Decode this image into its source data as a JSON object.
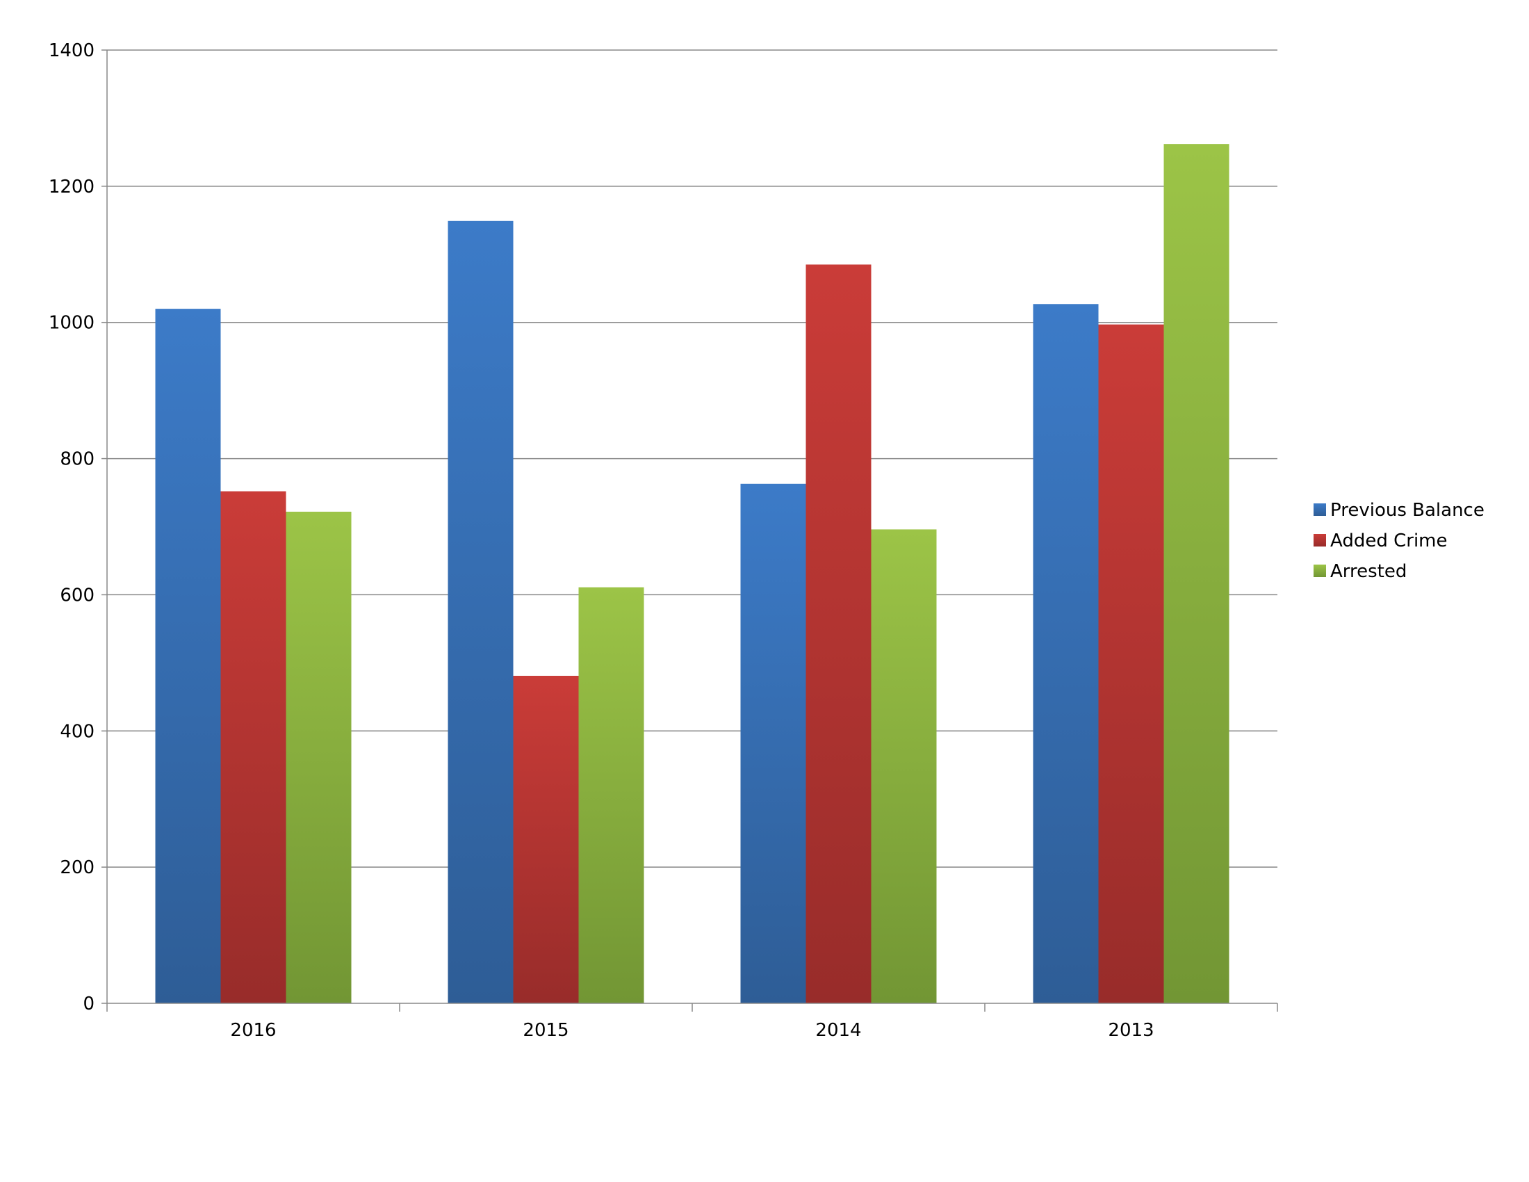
{
  "chart_data": {
    "type": "bar",
    "title": "",
    "xlabel": "",
    "ylabel": "",
    "categories": [
      "2016",
      "2015",
      "2014",
      "2013"
    ],
    "series": [
      {
        "name": "Previous Balance",
        "color": "#3a78c4",
        "values": [
          1020,
          1149,
          763,
          1027
        ]
      },
      {
        "name": "Added Crime",
        "color": "#c63a36",
        "values": [
          752,
          481,
          1085,
          997
        ]
      },
      {
        "name": "Arrested",
        "color": "#9ac144",
        "values": [
          722,
          611,
          696,
          1262
        ]
      }
    ],
    "ylim": [
      0,
      1400
    ],
    "yticks": [
      0,
      200,
      400,
      600,
      800,
      1000,
      1200,
      1400
    ],
    "grid": true,
    "legend": "right"
  }
}
